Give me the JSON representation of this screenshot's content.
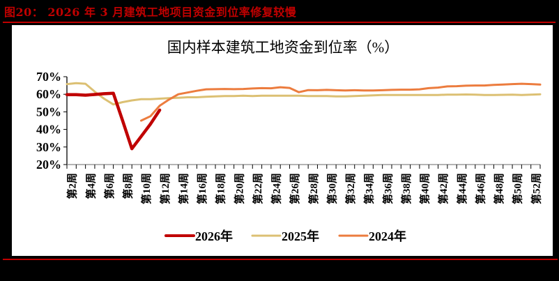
{
  "figure": {
    "label": "图20：",
    "caption": "2026年3月建筑工地项目资金到位率修复较慢",
    "full_title": "图20：  2026 年 3 月建筑工地项目资金到位率修复较慢"
  },
  "colors": {
    "accent_red": "#c00000",
    "series_2026": "#c00000",
    "series_2025": "#dcc073",
    "series_2024": "#ec7c3e"
  },
  "chart_data": {
    "type": "line",
    "title": "国内样本建筑工地资金到位率（%）",
    "xlabel": "",
    "ylabel": "",
    "ylim": [
      20,
      70
    ],
    "yticks": [
      "20%",
      "30%",
      "40%",
      "50%",
      "60%",
      "70%"
    ],
    "x": [
      1,
      2,
      3,
      4,
      5,
      6,
      7,
      8,
      9,
      10,
      11,
      12,
      13,
      14,
      15,
      16,
      17,
      18,
      19,
      20,
      21,
      22,
      23,
      24,
      25,
      26,
      27,
      28,
      29,
      30,
      31,
      32,
      33,
      34,
      35,
      36,
      37,
      38,
      39,
      40,
      41,
      42,
      43,
      44,
      45,
      46,
      47,
      48,
      49,
      50,
      51,
      52
    ],
    "xtick_labels": [
      "第2周",
      "第4周",
      "第6周",
      "第8周",
      "第10周",
      "第12周",
      "第14周",
      "第16周",
      "第18周",
      "第20周",
      "第22周",
      "第24周",
      "第26周",
      "第28周",
      "第30周",
      "第32周",
      "第34周",
      "第36周",
      "第38周",
      "第40周",
      "第42周",
      "第44周",
      "第46周",
      "第48周",
      "第50周",
      "第52周"
    ],
    "grid": false,
    "legend_position": "bottom",
    "series": [
      {
        "name": "2026年",
        "values": [
          59.8,
          59.8,
          59.5,
          59.9,
          60.3,
          60.6,
          45,
          29,
          36,
          43,
          51
        ]
      },
      {
        "name": "2025年",
        "values": [
          65.8,
          66.3,
          66.0,
          61.5,
          57.5,
          54.2,
          55.5,
          56.5,
          57.2,
          57.2,
          57.5,
          57.8,
          58.0,
          58.3,
          58.3,
          58.6,
          58.8,
          59.0,
          59.0,
          59.2,
          59.0,
          59.2,
          59.2,
          59.2,
          59.2,
          59.2,
          59.0,
          59.0,
          59.0,
          58.8,
          58.8,
          59.0,
          59.2,
          59.4,
          59.6,
          59.6,
          59.6,
          59.6,
          59.6,
          59.6,
          59.6,
          59.8,
          59.8,
          59.9,
          59.8,
          59.6,
          59.6,
          59.7,
          59.8,
          59.6,
          59.8,
          60.0
        ]
      },
      {
        "name": "2024年",
        "values": [
          null,
          null,
          null,
          null,
          null,
          null,
          null,
          null,
          45.0,
          47.5,
          53.5,
          57.0,
          60.0,
          61.0,
          62.0,
          62.8,
          62.9,
          63.0,
          62.9,
          63.0,
          63.3,
          63.5,
          63.4,
          64.0,
          63.6,
          61.2,
          62.4,
          62.3,
          62.5,
          62.3,
          62.2,
          62.3,
          62.2,
          62.2,
          62.3,
          62.5,
          62.6,
          62.6,
          62.8,
          63.5,
          63.8,
          64.5,
          64.6,
          64.9,
          65.0,
          65.0,
          65.3,
          65.5,
          65.8,
          66.0,
          65.8,
          65.5
        ]
      }
    ]
  },
  "legend": {
    "items": [
      {
        "label": "2026年"
      },
      {
        "label": "2025年"
      },
      {
        "label": "2024年"
      }
    ]
  }
}
